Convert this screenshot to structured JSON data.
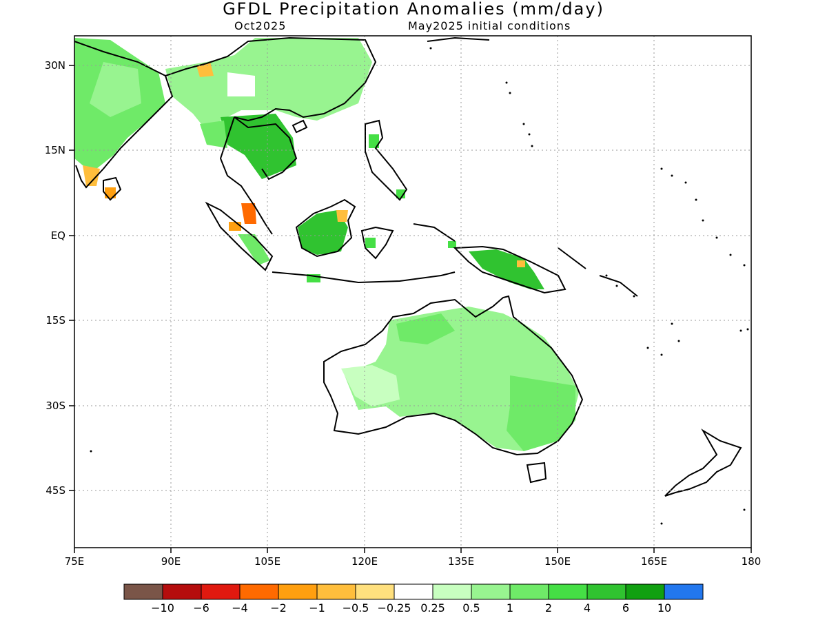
{
  "title": "GFDL Precipitation Anomalies (mm/day)",
  "subtitle_left": "Oct2025",
  "subtitle_right": "May2025 initial conditions",
  "lon_labels": [
    "75E",
    "90E",
    "105E",
    "120E",
    "135E",
    "150E",
    "165E",
    "180"
  ],
  "lat_labels": [
    "30N",
    "15N",
    "EQ",
    "15S",
    "30S",
    "45S"
  ],
  "lon_range": [
    75,
    180
  ],
  "lat_range": [
    -55,
    35
  ],
  "colorbar": {
    "colors": [
      "#7a5548",
      "#b50d0d",
      "#e0190f",
      "#ff6a00",
      "#ff9f0f",
      "#ffbe3c",
      "#ffe07e",
      "#ffffff",
      "#c8ffc0",
      "#98f490",
      "#6fea68",
      "#45df45",
      "#30c330",
      "#11a011",
      "#2277ee"
    ],
    "labels": [
      "−10",
      "−6",
      "−4",
      "−2",
      "−1",
      "−0.5",
      "−0.25",
      "0.25",
      "0.5",
      "1",
      "2",
      "4",
      "6",
      "10"
    ]
  },
  "chart_data": {
    "type": "heatmap",
    "title": "GFDL Precipitation Anomalies (mm/day)",
    "subtitle": "Oct2025 — May2025 initial conditions",
    "units": "mm/day",
    "x_ticks": [
      "75E",
      "90E",
      "105E",
      "120E",
      "135E",
      "150E",
      "165E",
      "180"
    ],
    "y_ticks": [
      "30N",
      "15N",
      "EQ",
      "15S",
      "30S",
      "45S"
    ],
    "grid": true
  }
}
